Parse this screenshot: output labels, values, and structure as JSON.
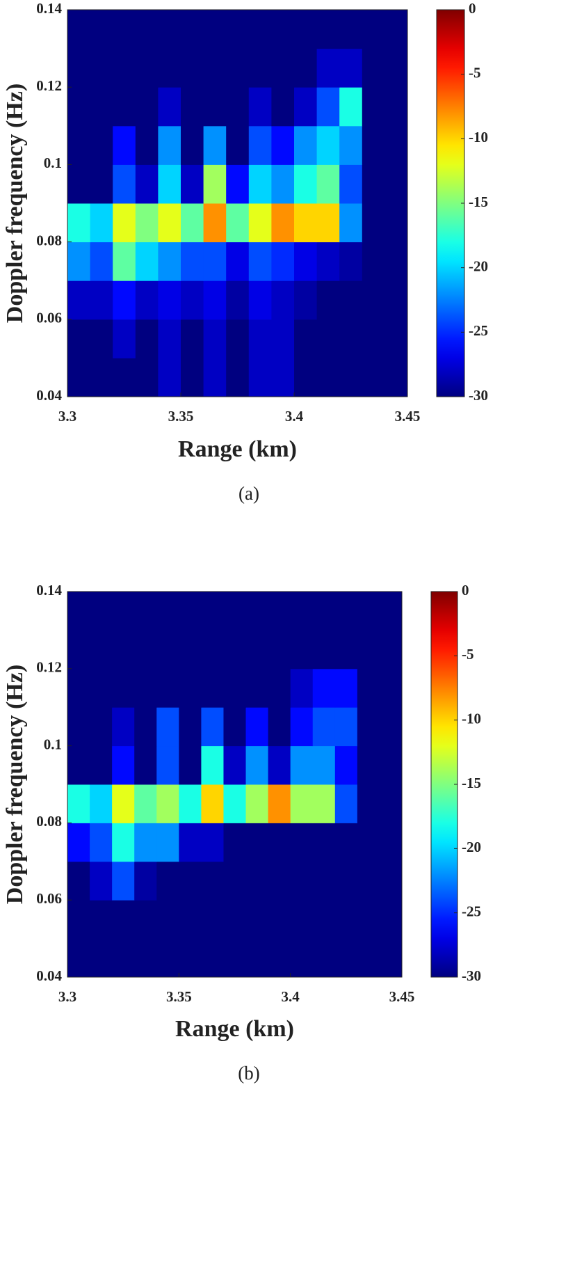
{
  "chart_data": [
    {
      "type": "heatmap",
      "caption": "(a)",
      "xlabel": "Range (km)",
      "ylabel": "Doppler frequency (Hz)",
      "colormap": "jet",
      "xlim": [
        3.3,
        3.45
      ],
      "xticks": [
        3.3,
        3.35,
        3.4,
        3.45
      ],
      "ylim": [
        0.04,
        0.14
      ],
      "yticks": [
        0.04,
        0.06,
        0.08,
        0.1,
        0.12,
        0.14
      ],
      "clim": [
        -30,
        0
      ],
      "cticks": [
        0,
        -5,
        -10,
        -15,
        -20,
        -25,
        -30
      ],
      "x": [
        3.305,
        3.315,
        3.325,
        3.335,
        3.345,
        3.355,
        3.365,
        3.375,
        3.385,
        3.395,
        3.405,
        3.415,
        3.425,
        3.435,
        3.445
      ],
      "y": [
        0.045,
        0.055,
        0.065,
        0.075,
        0.085,
        0.095,
        0.105,
        0.115,
        0.125,
        0.135
      ],
      "z": [
        [
          -30,
          -30,
          -30,
          -30,
          -28,
          -30,
          -28,
          -30,
          -28,
          -28,
          -30,
          -30,
          -30,
          -30,
          -30
        ],
        [
          -30,
          -30,
          -28,
          -30,
          -28,
          -30,
          -28,
          -30,
          -28,
          -28,
          -30,
          -30,
          -30,
          -30,
          -30
        ],
        [
          -28,
          -28,
          -26,
          -28,
          -27,
          -28,
          -27,
          -29,
          -27,
          -28,
          -29,
          -30,
          -30,
          -30,
          -30
        ],
        [
          -22,
          -24,
          -16,
          -20,
          -22,
          -24,
          -24,
          -27,
          -24,
          -25,
          -27,
          -28,
          -29,
          -30,
          -30
        ],
        [
          -18,
          -20,
          -12,
          -15,
          -12,
          -16,
          -8,
          -16,
          -12,
          -8,
          -10,
          -10,
          -22,
          -30,
          -30
        ],
        [
          -30,
          -30,
          -24,
          -28,
          -20,
          -28,
          -14,
          -26,
          -20,
          -22,
          -18,
          -16,
          -24,
          -30,
          -30
        ],
        [
          -30,
          -30,
          -26,
          -30,
          -22,
          -30,
          -22,
          -30,
          -24,
          -26,
          -22,
          -20,
          -22,
          -30,
          -30
        ],
        [
          -30,
          -30,
          -30,
          -30,
          -28,
          -30,
          -30,
          -30,
          -28,
          -30,
          -28,
          -24,
          -18,
          -30,
          -30
        ],
        [
          -30,
          -30,
          -30,
          -30,
          -30,
          -30,
          -30,
          -30,
          -30,
          -30,
          -30,
          -28,
          -28,
          -30,
          -30
        ],
        [
          -30,
          -30,
          -30,
          -30,
          -30,
          -30,
          -30,
          -30,
          -30,
          -30,
          -30,
          -30,
          -30,
          -30,
          -30
        ]
      ]
    },
    {
      "type": "heatmap",
      "caption": "(b)",
      "xlabel": "Range (km)",
      "ylabel": "Doppler frequency (Hz)",
      "colormap": "jet",
      "xlim": [
        3.3,
        3.45
      ],
      "xticks": [
        3.3,
        3.35,
        3.4,
        3.45
      ],
      "ylim": [
        0.04,
        0.14
      ],
      "yticks": [
        0.04,
        0.06,
        0.08,
        0.1,
        0.12,
        0.14
      ],
      "clim": [
        -30,
        0
      ],
      "cticks": [
        0,
        -5,
        -10,
        -15,
        -20,
        -25,
        -30
      ],
      "x": [
        3.305,
        3.315,
        3.325,
        3.335,
        3.345,
        3.355,
        3.365,
        3.375,
        3.385,
        3.395,
        3.405,
        3.415,
        3.425,
        3.435,
        3.445
      ],
      "y": [
        0.045,
        0.055,
        0.065,
        0.075,
        0.085,
        0.095,
        0.105,
        0.115,
        0.125,
        0.135
      ],
      "z": [
        [
          -30,
          -30,
          -30,
          -30,
          -30,
          -30,
          -30,
          -30,
          -30,
          -30,
          -30,
          -30,
          -30,
          -30,
          -30
        ],
        [
          -30,
          -30,
          -30,
          -30,
          -30,
          -30,
          -30,
          -30,
          -30,
          -30,
          -30,
          -30,
          -30,
          -30,
          -30
        ],
        [
          -30,
          -28,
          -24,
          -29,
          -30,
          -30,
          -30,
          -30,
          -30,
          -30,
          -30,
          -30,
          -30,
          -30,
          -30
        ],
        [
          -26,
          -24,
          -18,
          -22,
          -22,
          -28,
          -28,
          -30,
          -30,
          -30,
          -30,
          -30,
          -30,
          -30,
          -30
        ],
        [
          -18,
          -20,
          -12,
          -16,
          -14,
          -18,
          -10,
          -18,
          -14,
          -8,
          -14,
          -14,
          -24,
          -30,
          -30
        ],
        [
          -30,
          -30,
          -26,
          -30,
          -24,
          -30,
          -18,
          -28,
          -22,
          -28,
          -22,
          -22,
          -26,
          -30,
          -30
        ],
        [
          -30,
          -30,
          -28,
          -30,
          -24,
          -30,
          -24,
          -30,
          -26,
          -30,
          -26,
          -24,
          -24,
          -30,
          -30
        ],
        [
          -30,
          -30,
          -30,
          -30,
          -30,
          -30,
          -30,
          -30,
          -30,
          -30,
          -28,
          -26,
          -26,
          -30,
          -30
        ],
        [
          -30,
          -30,
          -30,
          -30,
          -30,
          -30,
          -30,
          -30,
          -30,
          -30,
          -30,
          -30,
          -30,
          -30,
          -30
        ],
        [
          -30,
          -30,
          -30,
          -30,
          -30,
          -30,
          -30,
          -30,
          -30,
          -30,
          -30,
          -30,
          -30,
          -30,
          -30
        ]
      ]
    }
  ]
}
